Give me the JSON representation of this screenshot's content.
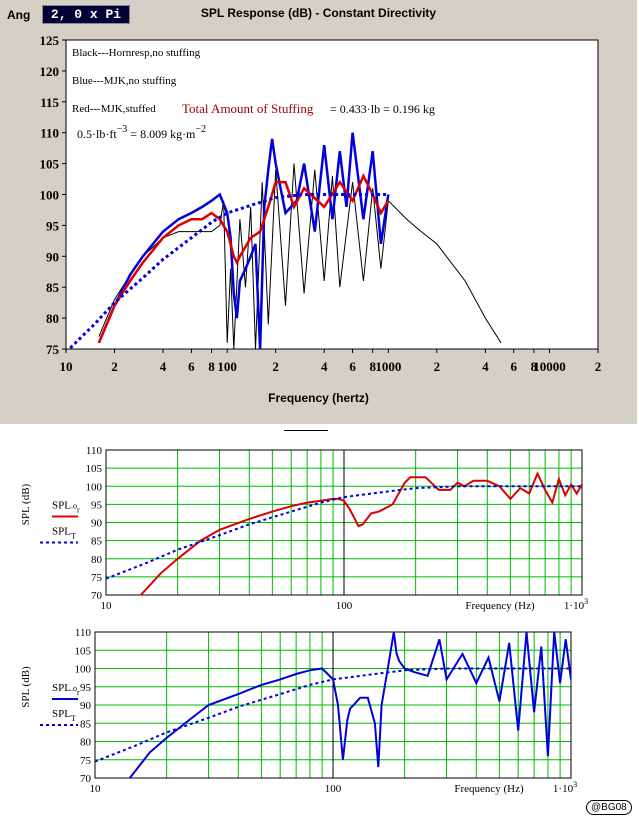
{
  "header": {
    "ang_label": "Ang",
    "ang_value": "2, 0 x Pi",
    "signature": "@BG08"
  },
  "chart_data": [
    {
      "type": "line",
      "title": "SPL Response (dB) - Constant Directivity",
      "xlabel": "Frequency (hertz)",
      "ylabel": "",
      "x_scale": "log",
      "xlim": [
        10,
        20000
      ],
      "ylim": [
        75,
        125
      ],
      "y_ticks": [
        75,
        80,
        85,
        90,
        95,
        100,
        105,
        110,
        115,
        120,
        125
      ],
      "x_tick_labels": [
        "10",
        "2",
        "4",
        "6",
        "8",
        "100",
        "2",
        "4",
        "6",
        "8",
        "1000",
        "2",
        "4",
        "6",
        "8",
        "10000",
        "2"
      ],
      "legend_notes": [
        "Black---Hornresp,no stuffing",
        "Blue---MJK,no stuffing",
        "Red---MJK,stuffed"
      ],
      "annotation": {
        "label": "Total Amount of Stuffing",
        "eq1": "= 0.433·lb = 0.196 kg",
        "eq2_a": "0.5·lb·ft",
        "eq2_sup_a": "−3",
        "eq2_b": " = 8.009 kg·m",
        "eq2_sup_b": "−2"
      },
      "grid": false,
      "series": [
        {
          "name": "Black---Hornresp,no stuffing",
          "color": "#000000",
          "x": [
            16,
            20,
            25,
            30,
            40,
            50,
            60,
            70,
            80,
            90,
            95,
            100,
            105,
            110,
            120,
            130,
            140,
            150,
            165,
            180,
            200,
            230,
            260,
            300,
            350,
            400,
            450,
            500,
            600,
            700,
            800,
            900,
            1000,
            1300,
            1600,
            2000,
            3000,
            4000,
            5000
          ],
          "y": [
            77,
            83,
            87,
            90,
            93,
            94,
            94,
            94,
            94,
            95,
            99,
            76,
            88,
            75,
            96,
            85,
            98,
            75,
            102,
            79,
            104,
            82,
            105,
            84,
            104,
            86,
            103,
            85,
            102,
            86,
            101,
            88,
            99,
            96,
            94,
            92,
            86,
            80,
            76
          ]
        },
        {
          "name": "Blue---MJK,no stuffing",
          "color": "#0000dd",
          "x": [
            16,
            20,
            25,
            30,
            40,
            50,
            60,
            70,
            80,
            90,
            100,
            105,
            110,
            115,
            120,
            130,
            140,
            150,
            160,
            170,
            180,
            190,
            200,
            230,
            270,
            300,
            350,
            400,
            450,
            500,
            550,
            600,
            700,
            800,
            900,
            1000
          ],
          "y": [
            76,
            82,
            87,
            90,
            94,
            96,
            97,
            98,
            99,
            100,
            97,
            93,
            84,
            80,
            86,
            88,
            90,
            92,
            75,
            98,
            104,
            109,
            105,
            97,
            99,
            105,
            94,
            108,
            96,
            107,
            98,
            110,
            96,
            107,
            92,
            100
          ]
        },
        {
          "name": "Red---MJK,stuffed",
          "color": "#dd0000",
          "x": [
            16,
            20,
            25,
            30,
            40,
            50,
            60,
            70,
            80,
            90,
            100,
            110,
            115,
            120,
            140,
            160,
            180,
            200,
            230,
            260,
            300,
            400,
            500,
            600,
            700,
            800,
            900,
            1000
          ],
          "y": [
            76,
            82,
            86,
            89,
            93,
            95,
            96,
            96,
            97,
            96,
            94,
            90,
            89,
            90,
            93,
            94,
            98,
            102,
            102,
            98,
            101,
            98,
            102,
            99,
            103,
            100,
            97,
            99
          ]
        },
        {
          "name": "Blue dotted reference",
          "color": "#0000dd",
          "dotted": true,
          "x": [
            10,
            15,
            20,
            30,
            40,
            60,
            80,
            100,
            150,
            200,
            300,
            400,
            500,
            700,
            1000
          ],
          "y": [
            74.5,
            79,
            82.5,
            86.5,
            89.5,
            93,
            95.5,
            97,
            98.5,
            99.5,
            100,
            100,
            100,
            100,
            100
          ]
        }
      ]
    },
    {
      "type": "line",
      "xlabel": "Frequency (Hz)",
      "ylabel": "SPL (dB)",
      "x_scale": "log",
      "xlim": [
        10,
        1000
      ],
      "ylim": [
        70,
        110
      ],
      "y_ticks": [
        70,
        75,
        80,
        85,
        90,
        95,
        100,
        105,
        110
      ],
      "x_tick_labels": [
        "10",
        "100",
        "1·10"
      ],
      "x_tick_sup": "3",
      "legend_labels": [
        {
          "base": "SPL",
          "sub": ".o",
          "sub2": "r"
        },
        {
          "base": "SPL",
          "sub": "T"
        }
      ],
      "grid": true,
      "series": [
        {
          "name": "SPL.o r",
          "color": "#dd0000",
          "x": [
            14,
            17,
            20,
            25,
            30,
            40,
            50,
            60,
            70,
            80,
            90,
            95,
            100,
            105,
            110,
            115,
            120,
            130,
            140,
            160,
            180,
            190,
            200,
            220,
            250,
            280,
            300,
            320,
            350,
            400,
            450,
            500,
            550,
            600,
            650,
            700,
            750,
            800,
            850,
            900,
            950,
            1000
          ],
          "y": [
            70,
            76,
            80,
            85,
            88,
            91,
            93,
            94.5,
            95.5,
            96,
            96.5,
            96.5,
            96,
            94,
            91.5,
            89,
            89.5,
            92.5,
            93,
            95,
            101,
            102.5,
            102.5,
            102.5,
            99,
            99,
            101,
            100,
            101.5,
            101.5,
            100,
            96.5,
            99.5,
            98,
            103.5,
            99,
            95.5,
            102,
            97.5,
            100.5,
            98,
            100.5
          ]
        },
        {
          "name": "SPL T",
          "color": "#0000dd",
          "dotted": true,
          "x": [
            10,
            15,
            20,
            30,
            40,
            60,
            80,
            100,
            150,
            200,
            300,
            400,
            600,
            1000
          ],
          "y": [
            74.5,
            79,
            82.5,
            86.5,
            89.5,
            93,
            95.5,
            97,
            98.5,
            99.5,
            100,
            100,
            100,
            100
          ]
        }
      ]
    },
    {
      "type": "line",
      "xlabel": "Frequency (Hz)",
      "ylabel": "SPL (dB)",
      "x_scale": "log",
      "xlim": [
        10,
        1000
      ],
      "ylim": [
        70,
        110
      ],
      "y_ticks": [
        70,
        75,
        80,
        85,
        90,
        95,
        100,
        105,
        110
      ],
      "x_tick_labels": [
        "10",
        "100",
        "1·10"
      ],
      "x_tick_sup": "3",
      "legend_labels": [
        {
          "base": "SPL",
          "sub": ".o",
          "sub2": "r"
        },
        {
          "base": "SPL",
          "sub": "T"
        }
      ],
      "grid": true,
      "series": [
        {
          "name": "SPL.o r",
          "color": "#0000dd",
          "x": [
            14,
            17,
            20,
            25,
            30,
            40,
            50,
            60,
            70,
            80,
            90,
            100,
            105,
            110,
            115,
            118,
            122,
            130,
            140,
            150,
            155,
            160,
            170,
            180,
            185,
            190,
            200,
            220,
            250,
            280,
            300,
            350,
            400,
            450,
            500,
            550,
            600,
            650,
            700,
            750,
            800,
            850,
            900,
            950,
            1000
          ],
          "y": [
            70,
            77,
            81,
            86,
            90,
            93,
            95.5,
            97,
            98.5,
            99.5,
            100,
            97,
            90,
            75,
            86,
            89,
            90,
            92,
            92,
            85,
            73,
            90,
            100,
            110,
            104,
            102,
            100,
            99,
            98,
            108,
            97,
            104,
            96,
            103,
            91,
            107,
            83,
            110,
            88,
            106,
            76,
            110,
            96,
            108,
            97
          ]
        },
        {
          "name": "SPL T",
          "color": "#0000dd",
          "dotted": true,
          "x": [
            10,
            15,
            20,
            30,
            40,
            60,
            80,
            100,
            150,
            200,
            300,
            400,
            600,
            1000
          ],
          "y": [
            74.5,
            79,
            82.5,
            86.5,
            89.5,
            93,
            95.5,
            97,
            98.5,
            99.5,
            100,
            100,
            100,
            100
          ]
        }
      ]
    }
  ]
}
